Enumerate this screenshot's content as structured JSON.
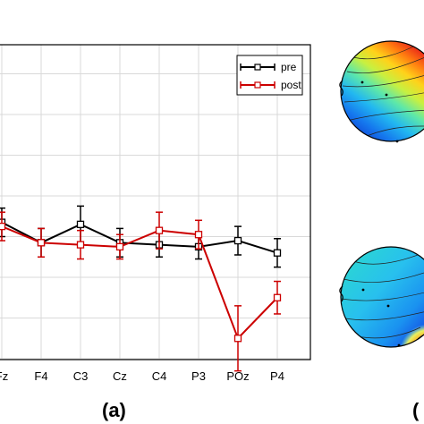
{
  "panel_labels": {
    "a": "(a)",
    "b": "("
  },
  "colors": {
    "pre": "#000000",
    "post": "#cc0000",
    "grid": "#d9d9d9"
  },
  "chart_data": [
    {
      "type": "line",
      "categories": [
        "Fz",
        "F4",
        "C3",
        "Cz",
        "C4",
        "P3",
        "POz",
        "P4"
      ],
      "grid": true,
      "legend": "top-right",
      "series": [
        {
          "name": "pre",
          "color": "#000000",
          "marker": "square",
          "values": [
            3.35,
            2.85,
            3.3,
            2.85,
            2.8,
            2.75,
            2.9,
            2.6
          ],
          "errors": [
            0.35,
            0.35,
            0.45,
            0.35,
            0.3,
            0.3,
            0.35,
            0.35
          ]
        },
        {
          "name": "post",
          "color": "#cc0000",
          "marker": "square",
          "values": [
            3.25,
            2.85,
            2.8,
            2.75,
            3.15,
            3.05,
            0.5,
            1.5
          ],
          "errors": [
            0.35,
            0.35,
            0.35,
            0.3,
            0.45,
            0.35,
            0.8,
            0.4
          ]
        }
      ]
    },
    {
      "type": "heatmap",
      "subtype": "scalp-topography",
      "count": 2,
      "colormap": "jet"
    }
  ]
}
